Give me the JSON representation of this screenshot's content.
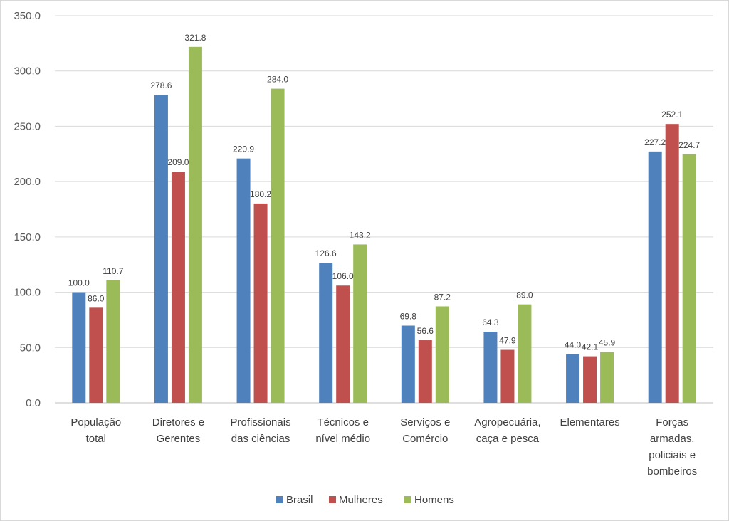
{
  "chart_data": {
    "type": "bar",
    "title": "",
    "xlabel": "",
    "ylabel": "",
    "ylim": [
      0,
      350
    ],
    "yticks": [
      0,
      50,
      100,
      150,
      200,
      250,
      300,
      350
    ],
    "ytick_labels": [
      "0.0",
      "50.0",
      "100.0",
      "150.0",
      "200.0",
      "250.0",
      "300.0",
      "350.0"
    ],
    "grid": true,
    "legend_position": "bottom",
    "categories": [
      [
        "População",
        "total"
      ],
      [
        "Diretores e",
        "Gerentes"
      ],
      [
        "Profissionais",
        "das ciências"
      ],
      [
        "Técnicos e",
        "nível médio"
      ],
      [
        "Serviços e",
        "Comércio"
      ],
      [
        "Agropecuária,",
        "caça e pesca"
      ],
      [
        "Elementares"
      ],
      [
        "Forças",
        "armadas,",
        "policiais e",
        "bombeiros"
      ]
    ],
    "series": [
      {
        "name": "Brasil",
        "color": "#4f81bd",
        "values": [
          100.0,
          278.6,
          220.9,
          126.6,
          69.8,
          64.3,
          44.0,
          227.2
        ],
        "labels": [
          "100.0",
          "278.6",
          "220.9",
          "126.6",
          "69.8",
          "64.3",
          "44.0",
          "227.2"
        ]
      },
      {
        "name": "Mulheres",
        "color": "#c0504d",
        "values": [
          86.0,
          209.0,
          180.2,
          106.0,
          56.6,
          47.9,
          42.1,
          252.1
        ],
        "labels": [
          "86.0",
          "209.0",
          "180.2",
          "106.0",
          "56.6",
          "47.9",
          "42.1",
          "252.1"
        ]
      },
      {
        "name": "Homens",
        "color": "#9bbb59",
        "values": [
          110.7,
          321.8,
          284.0,
          143.2,
          87.2,
          89.0,
          45.9,
          224.7
        ],
        "labels": [
          "110.7",
          "321.8",
          "284.0",
          "143.2",
          "87.2",
          "89.0",
          "45.9",
          "224.7"
        ]
      }
    ]
  }
}
